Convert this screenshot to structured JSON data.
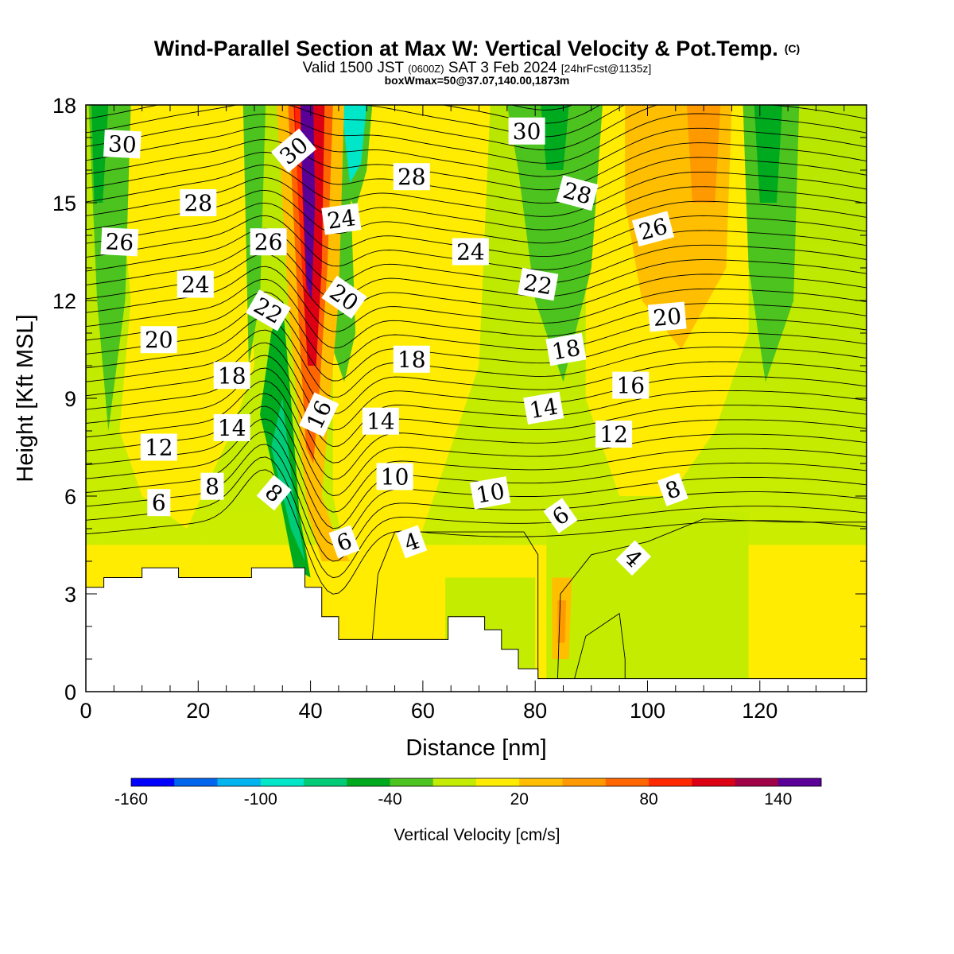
{
  "chart_data": {
    "type": "heatmap",
    "title": "Wind-Parallel Section at Max W: Vertical Velocity & Pot.Temp.",
    "title_suffix": "(C)",
    "subtitle_parts": [
      "Valid 1500 JST ",
      "(0600Z)",
      " SAT 3 Feb 2024 ",
      "[24hrFcst@1135z]"
    ],
    "subtitle2": "boxWmax=50@37.07,140.00,1873m",
    "xlabel": "Distance [nm]",
    "ylabel": "Height [Kft MSL]",
    "xlim": [
      0,
      139
    ],
    "ylim": [
      0,
      18
    ],
    "xticks": [
      0,
      20,
      40,
      60,
      80,
      100,
      120
    ],
    "yticks": [
      0,
      3,
      6,
      9,
      12,
      15,
      18
    ],
    "colorbar": {
      "title": "Vertical Velocity [cm/s]",
      "tick_labels": [
        "-160",
        "-100",
        "-40",
        "20",
        "80",
        "140"
      ],
      "colors": [
        "#0000ff",
        "#0066ee",
        "#00b4f0",
        "#00e6c8",
        "#00cc78",
        "#00aa1e",
        "#4cc31e",
        "#c4ec00",
        "#ffec00",
        "#ffbe00",
        "#ff9900",
        "#ff6600",
        "#ff2800",
        "#dc0014",
        "#a00046",
        "#5a0096"
      ]
    },
    "contour_labels": [
      {
        "text": "30",
        "x": 6.5,
        "y": 16.8,
        "angle": 3
      },
      {
        "text": "28",
        "x": 20,
        "y": 15.0,
        "angle": 0
      },
      {
        "text": "26",
        "x": 6,
        "y": 13.8,
        "angle": 3
      },
      {
        "text": "24",
        "x": 19.5,
        "y": 12.5,
        "angle": 0
      },
      {
        "text": "20",
        "x": 13,
        "y": 10.8,
        "angle": 0
      },
      {
        "text": "18",
        "x": 26,
        "y": 9.7,
        "angle": 0
      },
      {
        "text": "14",
        "x": 26,
        "y": 8.1,
        "angle": 0
      },
      {
        "text": "12",
        "x": 13,
        "y": 7.5,
        "angle": 0
      },
      {
        "text": "8",
        "x": 22.5,
        "y": 6.3,
        "angle": 0
      },
      {
        "text": "6",
        "x": 13,
        "y": 5.8,
        "angle": 0
      },
      {
        "text": "26",
        "x": 32.5,
        "y": 13.8,
        "angle": 0
      },
      {
        "text": "22",
        "x": 32.5,
        "y": 11.7,
        "angle": 30
      },
      {
        "text": "8",
        "x": 33.5,
        "y": 6.1,
        "angle": 40
      },
      {
        "text": "30",
        "x": 37,
        "y": 16.6,
        "angle": -40
      },
      {
        "text": "24",
        "x": 45.5,
        "y": 14.5,
        "angle": -8
      },
      {
        "text": "20",
        "x": 46,
        "y": 12.1,
        "angle": 35
      },
      {
        "text": "16",
        "x": 41.5,
        "y": 8.5,
        "angle": -65
      },
      {
        "text": "6",
        "x": 46,
        "y": 4.6,
        "angle": -20
      },
      {
        "text": "28",
        "x": 58,
        "y": 15.8,
        "angle": 0
      },
      {
        "text": "24",
        "x": 68.5,
        "y": 13.5,
        "angle": 0
      },
      {
        "text": "18",
        "x": 58,
        "y": 10.2,
        "angle": 0
      },
      {
        "text": "14",
        "x": 52.5,
        "y": 8.3,
        "angle": 0
      },
      {
        "text": "10",
        "x": 55,
        "y": 6.6,
        "angle": 0
      },
      {
        "text": "4",
        "x": 58,
        "y": 4.6,
        "angle": -20
      },
      {
        "text": "30",
        "x": 78.5,
        "y": 17.2,
        "angle": 0
      },
      {
        "text": "28",
        "x": 87.5,
        "y": 15.3,
        "angle": 15
      },
      {
        "text": "22",
        "x": 80.5,
        "y": 12.5,
        "angle": 10
      },
      {
        "text": "18",
        "x": 85.5,
        "y": 10.5,
        "angle": -10
      },
      {
        "text": "14",
        "x": 81.5,
        "y": 8.7,
        "angle": -10
      },
      {
        "text": "10",
        "x": 72,
        "y": 6.1,
        "angle": -10
      },
      {
        "text": "6",
        "x": 84.5,
        "y": 5.4,
        "angle": -35
      },
      {
        "text": "26",
        "x": 101,
        "y": 14.2,
        "angle": -15
      },
      {
        "text": "20",
        "x": 103.5,
        "y": 11.5,
        "angle": -5
      },
      {
        "text": "16",
        "x": 97,
        "y": 9.4,
        "angle": 0
      },
      {
        "text": "12",
        "x": 94,
        "y": 7.9,
        "angle": 0
      },
      {
        "text": "8",
        "x": 104.5,
        "y": 6.2,
        "angle": -20
      },
      {
        "text": "4",
        "x": 97.5,
        "y": 4.1,
        "angle": 45
      }
    ]
  }
}
